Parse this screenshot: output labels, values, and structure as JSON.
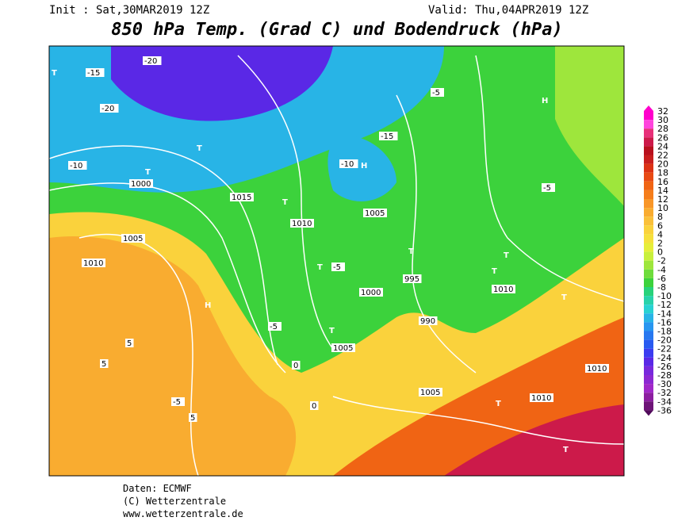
{
  "header": {
    "init": "Init : Sat,30MAR2019 12Z",
    "valid": "Valid: Thu,04APR2019 12Z",
    "title": "850 hPa Temp. (Grad C) und Bodendruck (hPa)"
  },
  "legend": {
    "ticks": [
      32,
      30,
      28,
      26,
      24,
      22,
      20,
      18,
      16,
      14,
      12,
      10,
      8,
      6,
      4,
      2,
      0,
      -2,
      -4,
      -6,
      -8,
      -10,
      -12,
      -14,
      -16,
      -18,
      -20,
      -22,
      -24,
      -26,
      -28,
      -30,
      -32,
      -34,
      -36
    ],
    "colors": [
      "#ff00cc",
      "#ff44dd",
      "#e8307a",
      "#cc1a4a",
      "#b8101e",
      "#c81e1e",
      "#dc3214",
      "#e84a14",
      "#f06414",
      "#f57d1a",
      "#f89628",
      "#f9ac30",
      "#fac03a",
      "#fad23c",
      "#f6e03c",
      "#e6ee3a",
      "#c8f03c",
      "#9ee63c",
      "#6edc3c",
      "#3cd23c",
      "#28d27a",
      "#28d2aa",
      "#28d2d2",
      "#28b4e6",
      "#2896f0",
      "#2878f0",
      "#285af0",
      "#3c3cf0",
      "#5a28e6",
      "#7828dc",
      "#8c28d2",
      "#a028c8",
      "#8c1ea0",
      "#6e1478",
      "#500a5a"
    ]
  },
  "map_labels": [
    "H",
    "H",
    "H",
    "T",
    "T",
    "T",
    "T",
    "T",
    "T",
    "T",
    "T",
    "T",
    "T",
    "T",
    "T",
    "-15",
    "-20",
    "-20",
    "-10",
    "-15",
    "-10",
    "-5",
    "-5",
    "-5",
    "-5",
    "1005",
    "1010",
    "1015",
    "1000",
    "1005",
    "1010",
    "995",
    "990",
    "1005",
    "1010",
    "1010",
    "1000",
    "1005",
    "1010",
    "5",
    "5",
    "5",
    "-5",
    "0",
    "0"
  ],
  "footer": {
    "source": "Daten: ECMWF",
    "copyright": "(C) Wetterzentrale",
    "url": "www.wetterzentrale.de"
  }
}
